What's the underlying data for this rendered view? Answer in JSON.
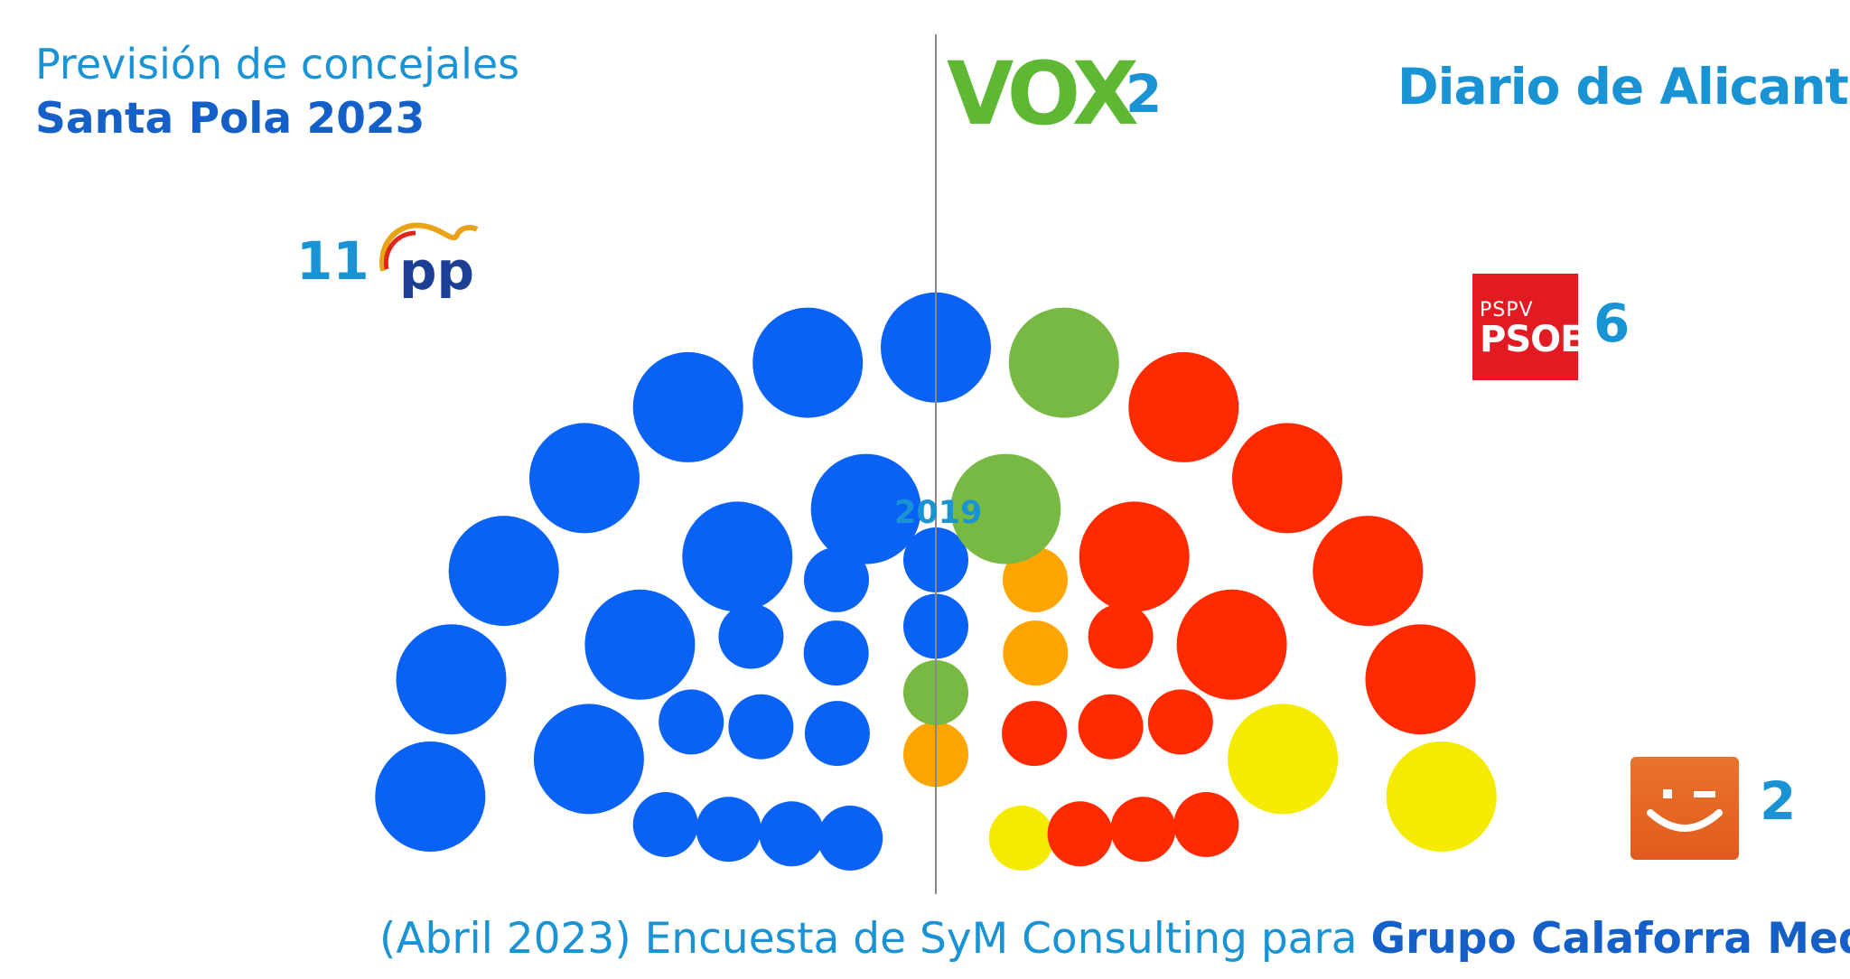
{
  "header": {
    "title_line1": "Previsión de concejales",
    "title_line2": "Santa Pola 2023",
    "brand": "Diario de Alicante"
  },
  "footer": {
    "text": "(Abril 2023) Encuesta de SyM Consulting para ",
    "org": "Grupo Calaforra Media"
  },
  "logos": {
    "vox": "VOX",
    "psoe_small": "PSPV",
    "psoe_big": "PSOE",
    "pp": "pp"
  },
  "chart_data": {
    "type": "hemicycle",
    "title": "Previsión de concejales",
    "subtitle": "Santa Pola 2023",
    "projection_2023": [
      {
        "party": "PP",
        "seats": 11,
        "color": "#0a62f5"
      },
      {
        "party": "VOX",
        "seats": 2,
        "color": "#78b944"
      },
      {
        "party": "PSOE",
        "seats": 6,
        "color": "#ff2a00"
      },
      {
        "party": "Som Poble",
        "seats": 2,
        "color": "#f5eb00"
      }
    ],
    "inner_label": "2019",
    "result_2019": [
      {
        "seats": 12,
        "color": "#0a62f5"
      },
      {
        "seats": 1,
        "color": "#78b944"
      },
      {
        "seats": 3,
        "color": "#ffa500"
      },
      {
        "seats": 7,
        "color": "#ff2a00"
      },
      {
        "seats": 1,
        "color": "#f5eb00"
      }
    ],
    "labels": {
      "pp": "11",
      "vox": "2",
      "psoe": "6",
      "som_poble": "2"
    }
  }
}
